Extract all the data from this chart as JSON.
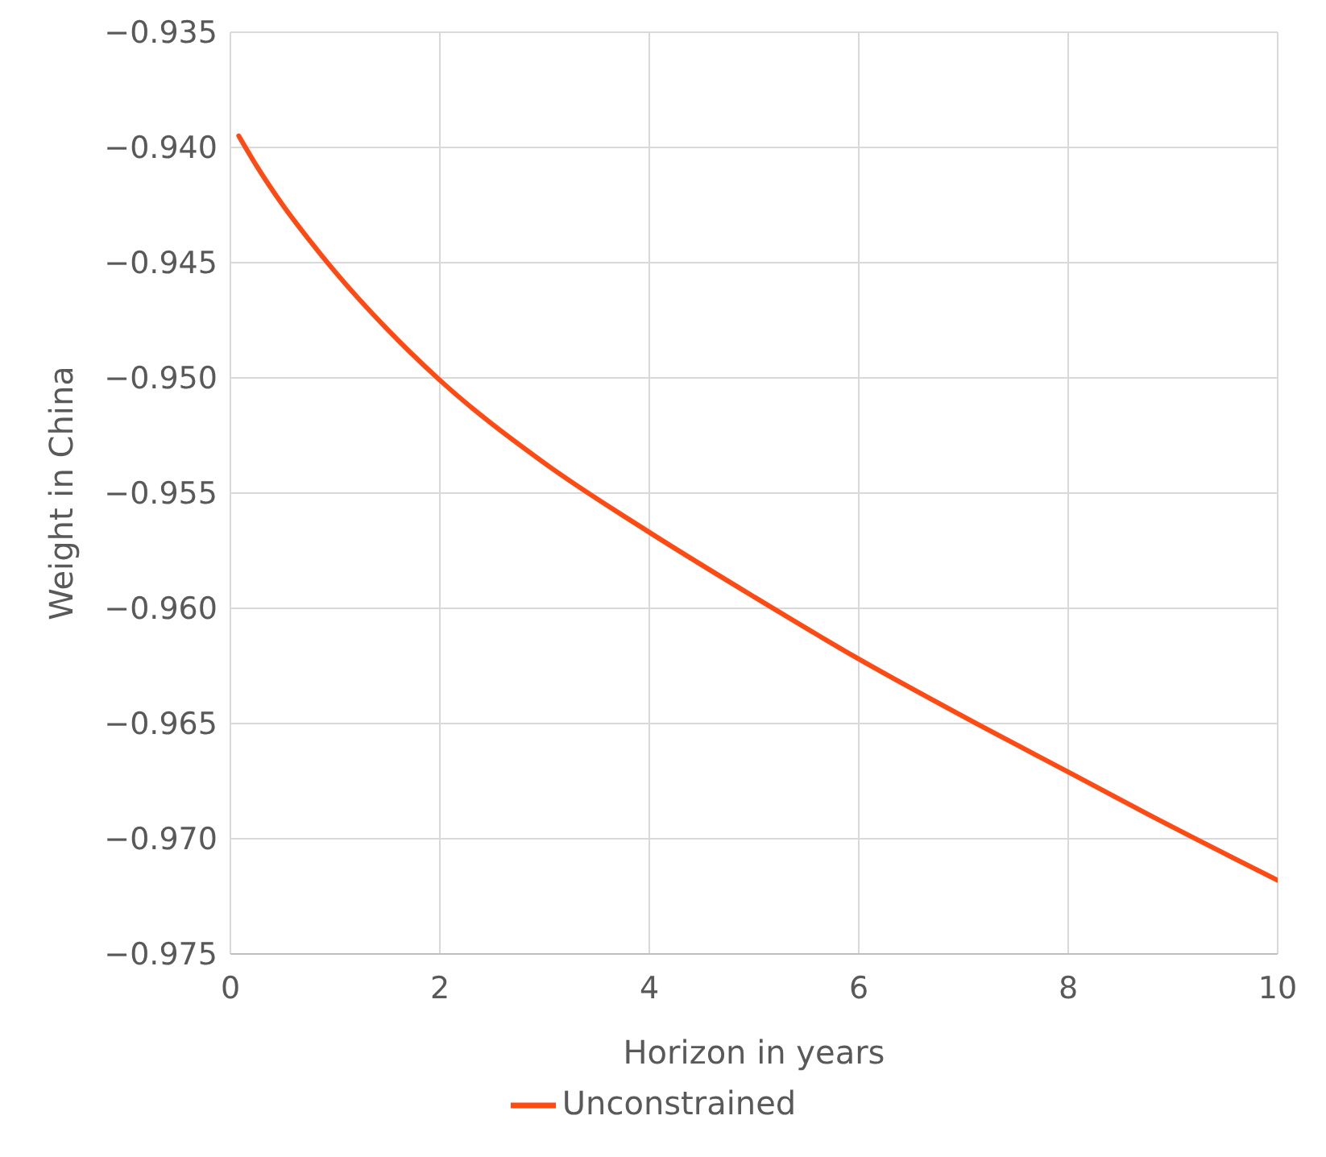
{
  "chart_data": {
    "type": "line",
    "xlabel": "Horizon in years",
    "ylabel": "Weight in China",
    "x": [
      0.08,
      0.25,
      0.5,
      0.75,
      1,
      1.5,
      2,
      3,
      4,
      5,
      6,
      7,
      8,
      9,
      10
    ],
    "series": [
      {
        "name": "Unconstrained",
        "color": "#ff4a14",
        "values": [
          -0.9395,
          -0.9408,
          -0.9425,
          -0.944,
          -0.9454,
          -0.9479,
          -0.9501,
          -0.9537,
          -0.9567,
          -0.9595,
          -0.9622,
          -0.9647,
          -0.9671,
          -0.9695,
          -0.9718
        ]
      }
    ],
    "xlim": [
      0,
      10
    ],
    "xticks": [
      0,
      2,
      4,
      6,
      8,
      10
    ],
    "ylim": [
      -0.975,
      -0.935
    ],
    "yticks": [
      {
        "value": -0.975,
        "label": "−0.975"
      },
      {
        "value": -0.97,
        "label": "−0.970"
      },
      {
        "value": -0.965,
        "label": "−0.965"
      },
      {
        "value": -0.96,
        "label": "−0.960"
      },
      {
        "value": -0.955,
        "label": "−0.955"
      },
      {
        "value": -0.95,
        "label": "−0.950"
      },
      {
        "value": -0.945,
        "label": "−0.945"
      },
      {
        "value": -0.94,
        "label": "−0.940"
      },
      {
        "value": -0.935,
        "label": "−0.935"
      }
    ],
    "grid": true,
    "legend": "bottom",
    "marker": "none",
    "line_style": "solid"
  }
}
